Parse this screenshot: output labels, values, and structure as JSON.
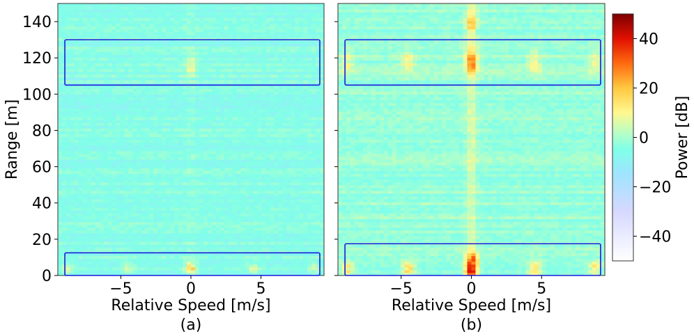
{
  "chart_data": {
    "type": "heatmap",
    "panels": [
      {
        "caption": "(a)",
        "xlabel": "Relative Speed [m/s]",
        "ylabel": "Range [m]",
        "xlim": [
          -9.5,
          9.5
        ],
        "ylim": [
          0,
          150
        ],
        "xticks": [
          -5,
          0,
          5
        ],
        "xtick_labels": [
          "−5",
          "0",
          "5"
        ],
        "yticks": [
          0,
          20,
          40,
          60,
          80,
          100,
          120,
          140
        ],
        "ytick_labels": [
          "0",
          "20",
          "40",
          "60",
          "80",
          "100",
          "120",
          "140"
        ],
        "background_db": -5,
        "boxes": [
          {
            "x0": -9,
            "x1": 9.2,
            "y0": 105,
            "y1": 130
          },
          {
            "x0": -9,
            "x1": 9.2,
            "y0": 0,
            "y1": 12.5
          }
        ],
        "hotspots": [
          {
            "x": 0,
            "y": 4,
            "db": 14
          },
          {
            "x": -4.5,
            "y": 4,
            "db": 6
          },
          {
            "x": 4.5,
            "y": 4,
            "db": 6
          },
          {
            "x": -8.8,
            "y": 4,
            "db": 4
          },
          {
            "x": 8.8,
            "y": 4,
            "db": 4
          },
          {
            "x": 0,
            "y": 116,
            "db": 4
          }
        ]
      },
      {
        "caption": "(b)",
        "xlabel": "Relative Speed [m/s]",
        "ylabel": "",
        "xlim": [
          -9.5,
          9.5
        ],
        "ylim": [
          0,
          150
        ],
        "xticks": [
          -5,
          0,
          5
        ],
        "xtick_labels": [
          "−5",
          "0",
          "5"
        ],
        "yticks": [
          0,
          20,
          40,
          60,
          80,
          100,
          120,
          140
        ],
        "ytick_labels": [],
        "background_db": -2,
        "boxes": [
          {
            "x0": -9,
            "x1": 9.2,
            "y0": 105,
            "y1": 130
          },
          {
            "x0": -9,
            "x1": 9.2,
            "y0": 0,
            "y1": 17.5
          }
        ],
        "hotspots": [
          {
            "x": 0,
            "y": 3,
            "db": 32
          },
          {
            "x": 0,
            "y": 9,
            "db": 24
          },
          {
            "x": -4.5,
            "y": 4,
            "db": 18
          },
          {
            "x": 4.5,
            "y": 4,
            "db": 18
          },
          {
            "x": -8.8,
            "y": 4,
            "db": 14
          },
          {
            "x": 8.8,
            "y": 4,
            "db": 14
          },
          {
            "x": 0,
            "y": 118,
            "db": 20
          },
          {
            "x": -4.5,
            "y": 118,
            "db": 10
          },
          {
            "x": 4.5,
            "y": 118,
            "db": 10
          },
          {
            "x": -8.8,
            "y": 118,
            "db": 8
          },
          {
            "x": 8.8,
            "y": 118,
            "db": 8
          },
          {
            "x": 0,
            "y": 140,
            "db": 10
          }
        ]
      }
    ],
    "colorbar": {
      "label": "Power [dB]",
      "range": [
        -50,
        50
      ],
      "ticks": [
        -40,
        -20,
        0,
        20,
        40
      ],
      "tick_labels": [
        "−40",
        "−20",
        "0",
        "20",
        "40"
      ],
      "colormap": "jet-to-white"
    },
    "colors": {
      "box": "#1a1adb",
      "axes": "#333333"
    }
  }
}
